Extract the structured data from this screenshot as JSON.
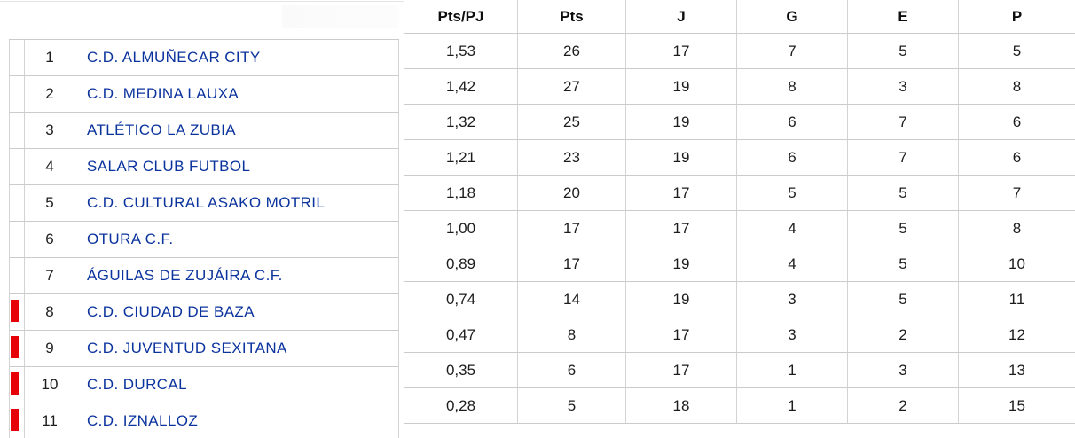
{
  "table": {
    "columns": [
      "Pts/PJ",
      "Pts",
      "J",
      "G",
      "E",
      "P"
    ],
    "rows": [
      {
        "pos": "1",
        "team": "C.D. ALMUÑECAR CITY",
        "pts_pj": "1,53",
        "pts": "26",
        "j": "17",
        "g": "7",
        "e": "5",
        "p": "5",
        "relegation_marker": false
      },
      {
        "pos": "2",
        "team": "C.D. MEDINA LAUXA",
        "pts_pj": "1,42",
        "pts": "27",
        "j": "19",
        "g": "8",
        "e": "3",
        "p": "8",
        "relegation_marker": false
      },
      {
        "pos": "3",
        "team": "ATLÉTICO LA ZUBIA",
        "pts_pj": "1,32",
        "pts": "25",
        "j": "19",
        "g": "6",
        "e": "7",
        "p": "6",
        "relegation_marker": false
      },
      {
        "pos": "4",
        "team": "SALAR CLUB FUTBOL",
        "pts_pj": "1,21",
        "pts": "23",
        "j": "19",
        "g": "6",
        "e": "7",
        "p": "6",
        "relegation_marker": false
      },
      {
        "pos": "5",
        "team": "C.D. CULTURAL ASAKO MOTRIL",
        "pts_pj": "1,18",
        "pts": "20",
        "j": "17",
        "g": "5",
        "e": "5",
        "p": "7",
        "relegation_marker": false
      },
      {
        "pos": "6",
        "team": "OTURA C.F.",
        "pts_pj": "1,00",
        "pts": "17",
        "j": "17",
        "g": "4",
        "e": "5",
        "p": "8",
        "relegation_marker": false
      },
      {
        "pos": "7",
        "team": "ÁGUILAS DE ZUJÁIRA C.F.",
        "pts_pj": "0,89",
        "pts": "17",
        "j": "19",
        "g": "4",
        "e": "5",
        "p": "10",
        "relegation_marker": false
      },
      {
        "pos": "8",
        "team": "C.D. CIUDAD DE BAZA",
        "pts_pj": "0,74",
        "pts": "14",
        "j": "19",
        "g": "3",
        "e": "5",
        "p": "11",
        "relegation_marker": true
      },
      {
        "pos": "9",
        "team": "C.D. JUVENTUD SEXITANA",
        "pts_pj": "0,47",
        "pts": "8",
        "j": "17",
        "g": "3",
        "e": "2",
        "p": "12",
        "relegation_marker": true
      },
      {
        "pos": "10",
        "team": "C.D. DURCAL",
        "pts_pj": "0,35",
        "pts": "6",
        "j": "17",
        "g": "1",
        "e": "3",
        "p": "13",
        "relegation_marker": true
      },
      {
        "pos": "11",
        "team": "C.D. IZNALLOZ",
        "pts_pj": "0,28",
        "pts": "5",
        "j": "18",
        "g": "1",
        "e": "2",
        "p": "15",
        "relegation_marker": true
      }
    ]
  },
  "colors": {
    "team_link": "#0b339e",
    "relegation_marker": "#e60008",
    "header_text": "#0d0d0d"
  }
}
